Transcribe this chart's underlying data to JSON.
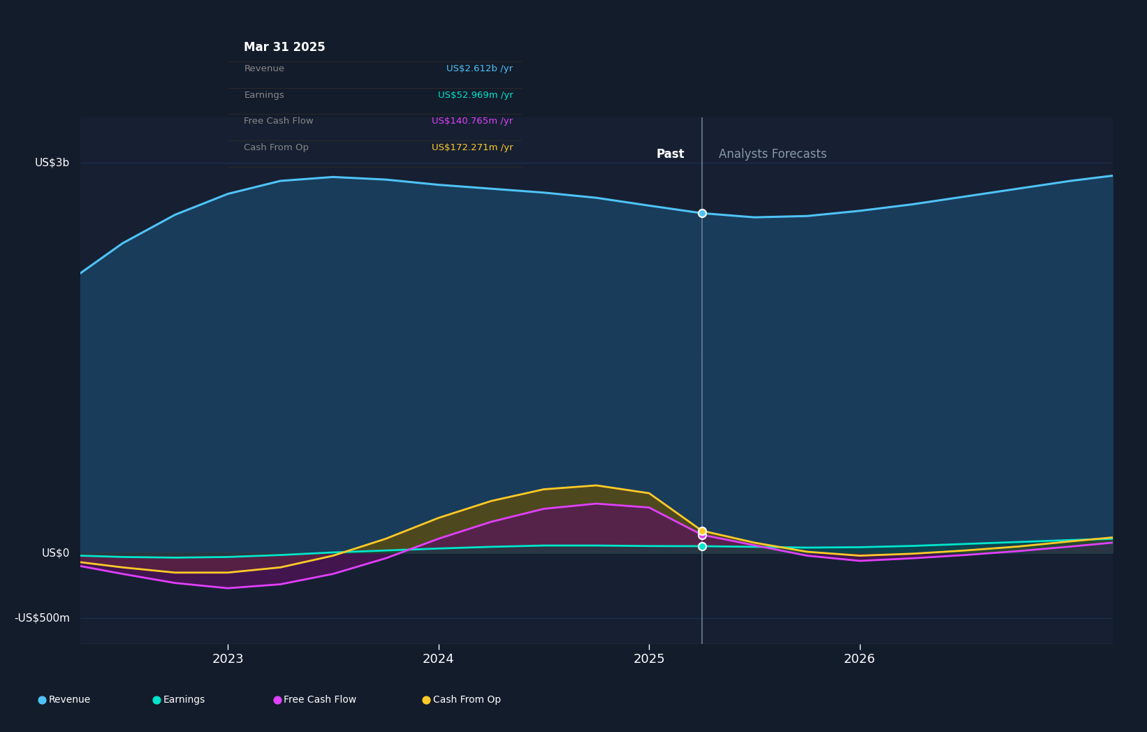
{
  "bg_color": "#131c2b",
  "plot_bg_color": "#162032",
  "grid_color": "#1e3050",
  "title_tooltip": "Mar 31 2025",
  "tooltip_items": [
    {
      "label": "Revenue",
      "value": "US$2.612b /yr",
      "color": "#4fc3f7"
    },
    {
      "label": "Earnings",
      "value": "US$52.969m /yr",
      "color": "#00e5cc"
    },
    {
      "label": "Free Cash Flow",
      "value": "US$140.765m /yr",
      "color": "#e040fb"
    },
    {
      "label": "Cash From Op",
      "value": "US$172.271m /yr",
      "color": "#ffca28"
    }
  ],
  "ylabel_top": "US$3b",
  "ylabel_zero": "US$0",
  "ylabel_bottom": "-US$500m",
  "past_label": "Past",
  "forecast_label": "Analysts Forecasts",
  "divider_x": 2025.25,
  "x_ticks": [
    2023,
    2024,
    2025,
    2026
  ],
  "x_min": 2022.3,
  "x_max": 2027.2,
  "y_min": -700000000,
  "y_max": 3350000000,
  "revenue": {
    "color": "#4fc3f7",
    "label": "Revenue",
    "x": [
      2022.3,
      2022.5,
      2022.75,
      2023.0,
      2023.25,
      2023.5,
      2023.75,
      2024.0,
      2024.25,
      2024.5,
      2024.75,
      2025.0,
      2025.25,
      2025.5,
      2025.75,
      2026.0,
      2026.25,
      2026.5,
      2026.75,
      2027.0,
      2027.2
    ],
    "y": [
      2150000000,
      2380000000,
      2600000000,
      2760000000,
      2860000000,
      2890000000,
      2870000000,
      2830000000,
      2800000000,
      2770000000,
      2730000000,
      2670000000,
      2612000000,
      2580000000,
      2590000000,
      2630000000,
      2680000000,
      2740000000,
      2800000000,
      2860000000,
      2900000000
    ]
  },
  "earnings": {
    "color": "#00e5cc",
    "label": "Earnings",
    "x": [
      2022.3,
      2022.5,
      2022.75,
      2023.0,
      2023.25,
      2023.5,
      2023.75,
      2024.0,
      2024.25,
      2024.5,
      2024.75,
      2025.0,
      2025.25,
      2025.5,
      2025.75,
      2026.0,
      2026.25,
      2026.5,
      2026.75,
      2027.0,
      2027.2
    ],
    "y": [
      -20000000,
      -30000000,
      -35000000,
      -30000000,
      -15000000,
      5000000,
      20000000,
      35000000,
      48000000,
      58000000,
      58000000,
      54000000,
      52969000,
      48000000,
      42000000,
      45000000,
      55000000,
      70000000,
      85000000,
      100000000,
      110000000
    ]
  },
  "free_cash_flow": {
    "color": "#e040fb",
    "label": "Free Cash Flow",
    "x": [
      2022.3,
      2022.5,
      2022.75,
      2023.0,
      2023.25,
      2023.5,
      2023.75,
      2024.0,
      2024.25,
      2024.5,
      2024.75,
      2025.0,
      2025.25,
      2025.5,
      2025.75,
      2026.0,
      2026.25,
      2026.5,
      2026.75,
      2027.0,
      2027.2
    ],
    "y": [
      -100000000,
      -160000000,
      -230000000,
      -270000000,
      -240000000,
      -160000000,
      -40000000,
      110000000,
      240000000,
      340000000,
      380000000,
      350000000,
      140765000,
      60000000,
      -20000000,
      -60000000,
      -40000000,
      -15000000,
      15000000,
      50000000,
      80000000
    ]
  },
  "cash_from_op": {
    "color": "#ffca28",
    "label": "Cash From Op",
    "x": [
      2022.3,
      2022.5,
      2022.75,
      2023.0,
      2023.25,
      2023.5,
      2023.75,
      2024.0,
      2024.25,
      2024.5,
      2024.75,
      2025.0,
      2025.25,
      2025.5,
      2025.75,
      2026.0,
      2026.25,
      2026.5,
      2026.75,
      2027.0,
      2027.2
    ],
    "y": [
      -70000000,
      -110000000,
      -150000000,
      -150000000,
      -110000000,
      -20000000,
      110000000,
      270000000,
      400000000,
      490000000,
      520000000,
      460000000,
      172271000,
      80000000,
      10000000,
      -20000000,
      -5000000,
      20000000,
      50000000,
      90000000,
      120000000
    ]
  },
  "legend_items": [
    {
      "label": "Revenue",
      "color": "#4fc3f7"
    },
    {
      "label": "Earnings",
      "color": "#00e5cc"
    },
    {
      "label": "Free Cash Flow",
      "color": "#e040fb"
    },
    {
      "label": "Cash From Op",
      "color": "#ffca28"
    }
  ]
}
